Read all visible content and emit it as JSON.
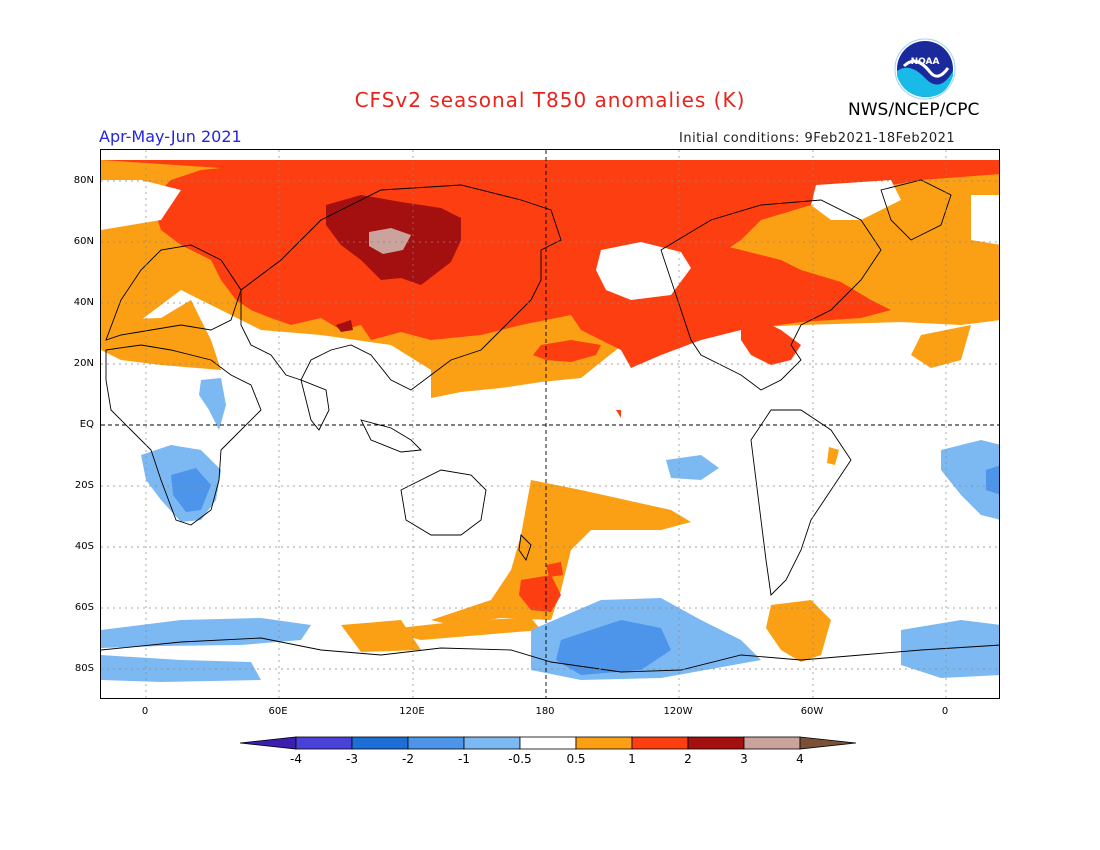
{
  "title": "CFSv2 seasonal T850 anomalies (K)",
  "org": "NWS/NCEP/CPC",
  "period": "Apr-May-Jun 2021",
  "initial_conditions": "Initial conditions: 9Feb2021-18Feb2021",
  "logo_text": "NOAA",
  "lat_labels": [
    "80N",
    "60N",
    "40N",
    "20N",
    "EQ",
    "20S",
    "40S",
    "60S",
    "80S"
  ],
  "lon_labels": [
    "0",
    "60E",
    "120E",
    "180",
    "120W",
    "60W",
    "0"
  ],
  "colorbar": {
    "labels": [
      "-4",
      "-3",
      "-2",
      "-1",
      "-0.5",
      "0.5",
      "1",
      "2",
      "3",
      "4"
    ],
    "colors": [
      "#3a1fb0",
      "#4a42d8",
      "#1e6ed8",
      "#4c95ea",
      "#7cb9f2",
      "#ffffff",
      "#fba014",
      "#fc3e10",
      "#a40f0f",
      "#c9a39c",
      "#7a5036"
    ]
  },
  "palette": {
    "warm_05_1": "#fba014",
    "warm_1_2": "#fc3e10",
    "warm_2_3": "#a40f0f",
    "warm_3_4": "#c9a39c",
    "cool_05_1": "#7cb9f2",
    "cool_1_2": "#4c95ea",
    "title_red": "#e8231c",
    "period_blue": "#2525e0"
  }
}
